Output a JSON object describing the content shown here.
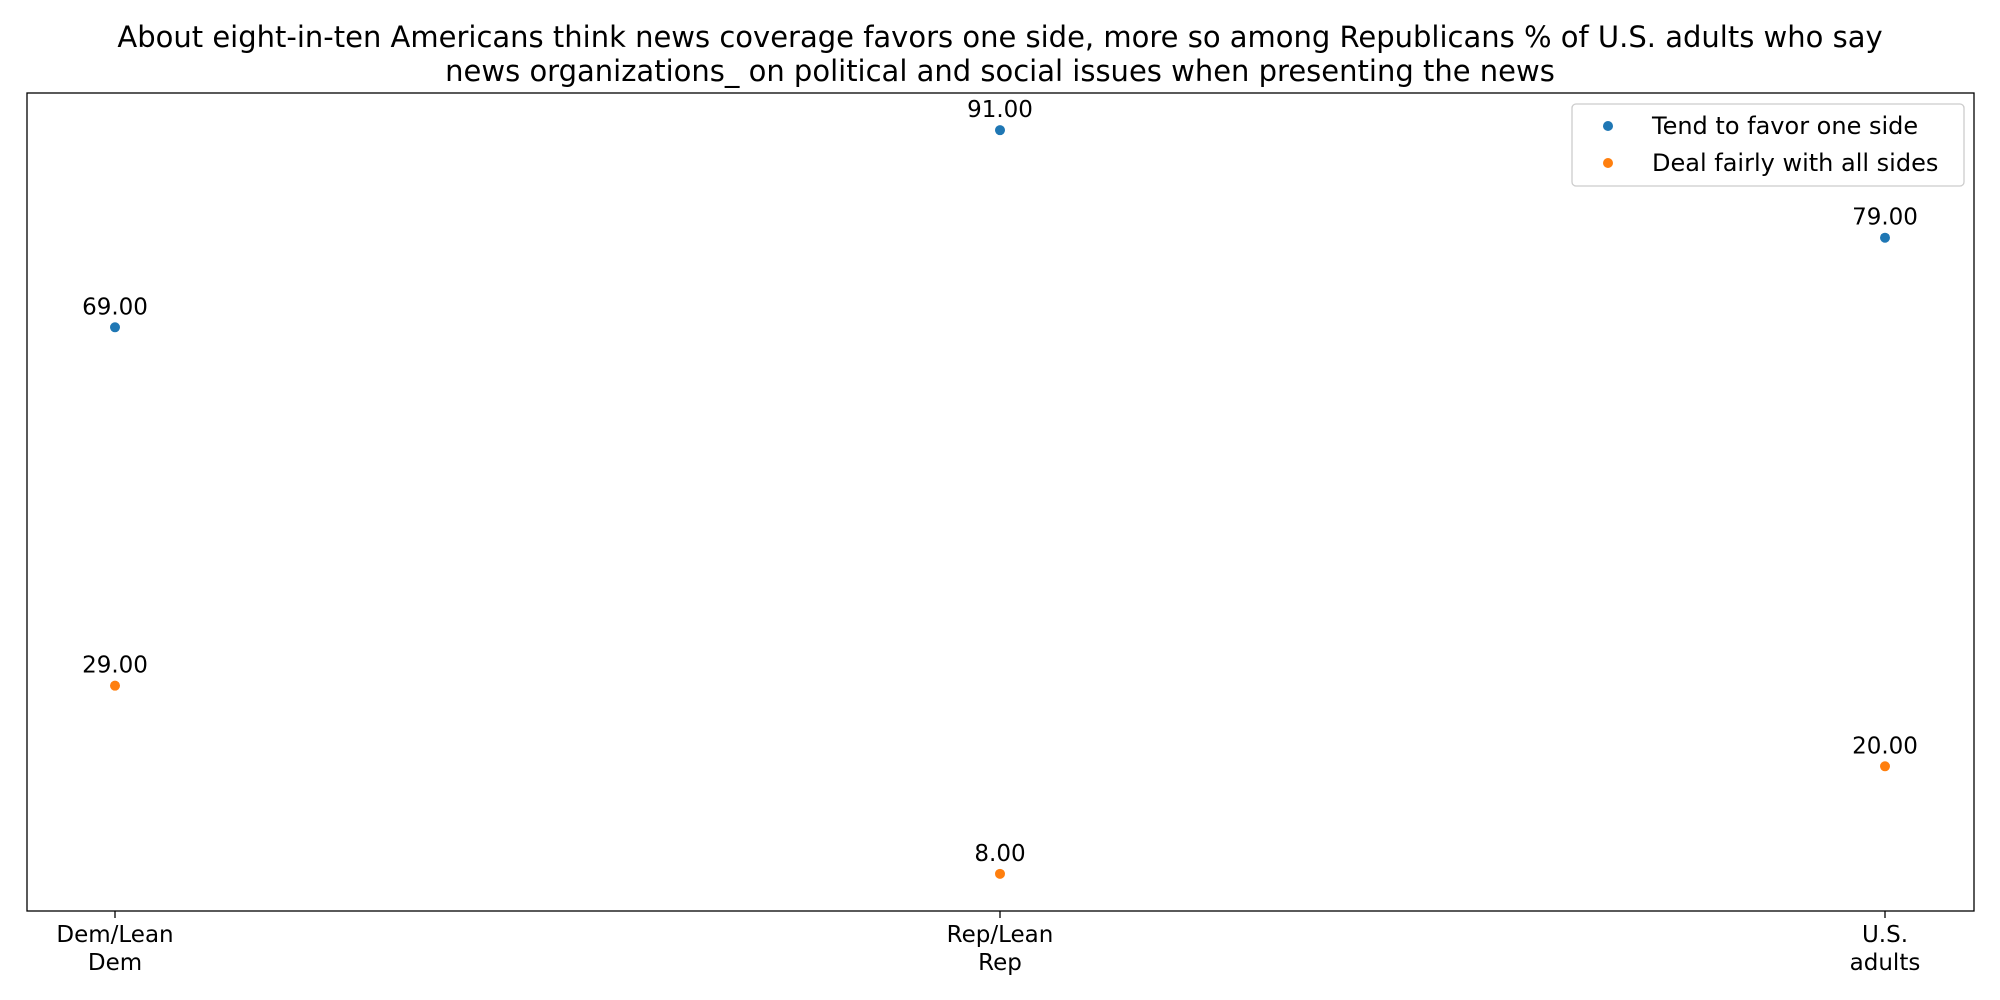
{
  "chart_data": {
    "type": "scatter",
    "title_lines": [
      "About eight-in-ten Americans think news coverage favors one side, more so among Republicans % of U.S. adults who say",
      "news organizations_ on political and social issues when presenting the news"
    ],
    "categories": [
      [
        "Dem/Lean",
        "Dem"
      ],
      [
        "Rep/Lean",
        "Rep"
      ],
      [
        "U.S.",
        "adults"
      ]
    ],
    "series": [
      {
        "name": "Tend to favor one side",
        "color": "#1f77b4",
        "values": [
          69,
          91,
          79
        ],
        "labels": [
          "69.00",
          "91.00",
          "79.00"
        ]
      },
      {
        "name": "Deal fairly with all sides",
        "color": "#ff7f0e",
        "values": [
          29,
          8,
          20
        ],
        "labels": [
          "29.00",
          "8.00",
          "20.00"
        ]
      }
    ],
    "ylim": [
      3.85,
      95.15
    ],
    "y_ticks_visible": false,
    "grid": false,
    "legend_position": "top-right"
  }
}
